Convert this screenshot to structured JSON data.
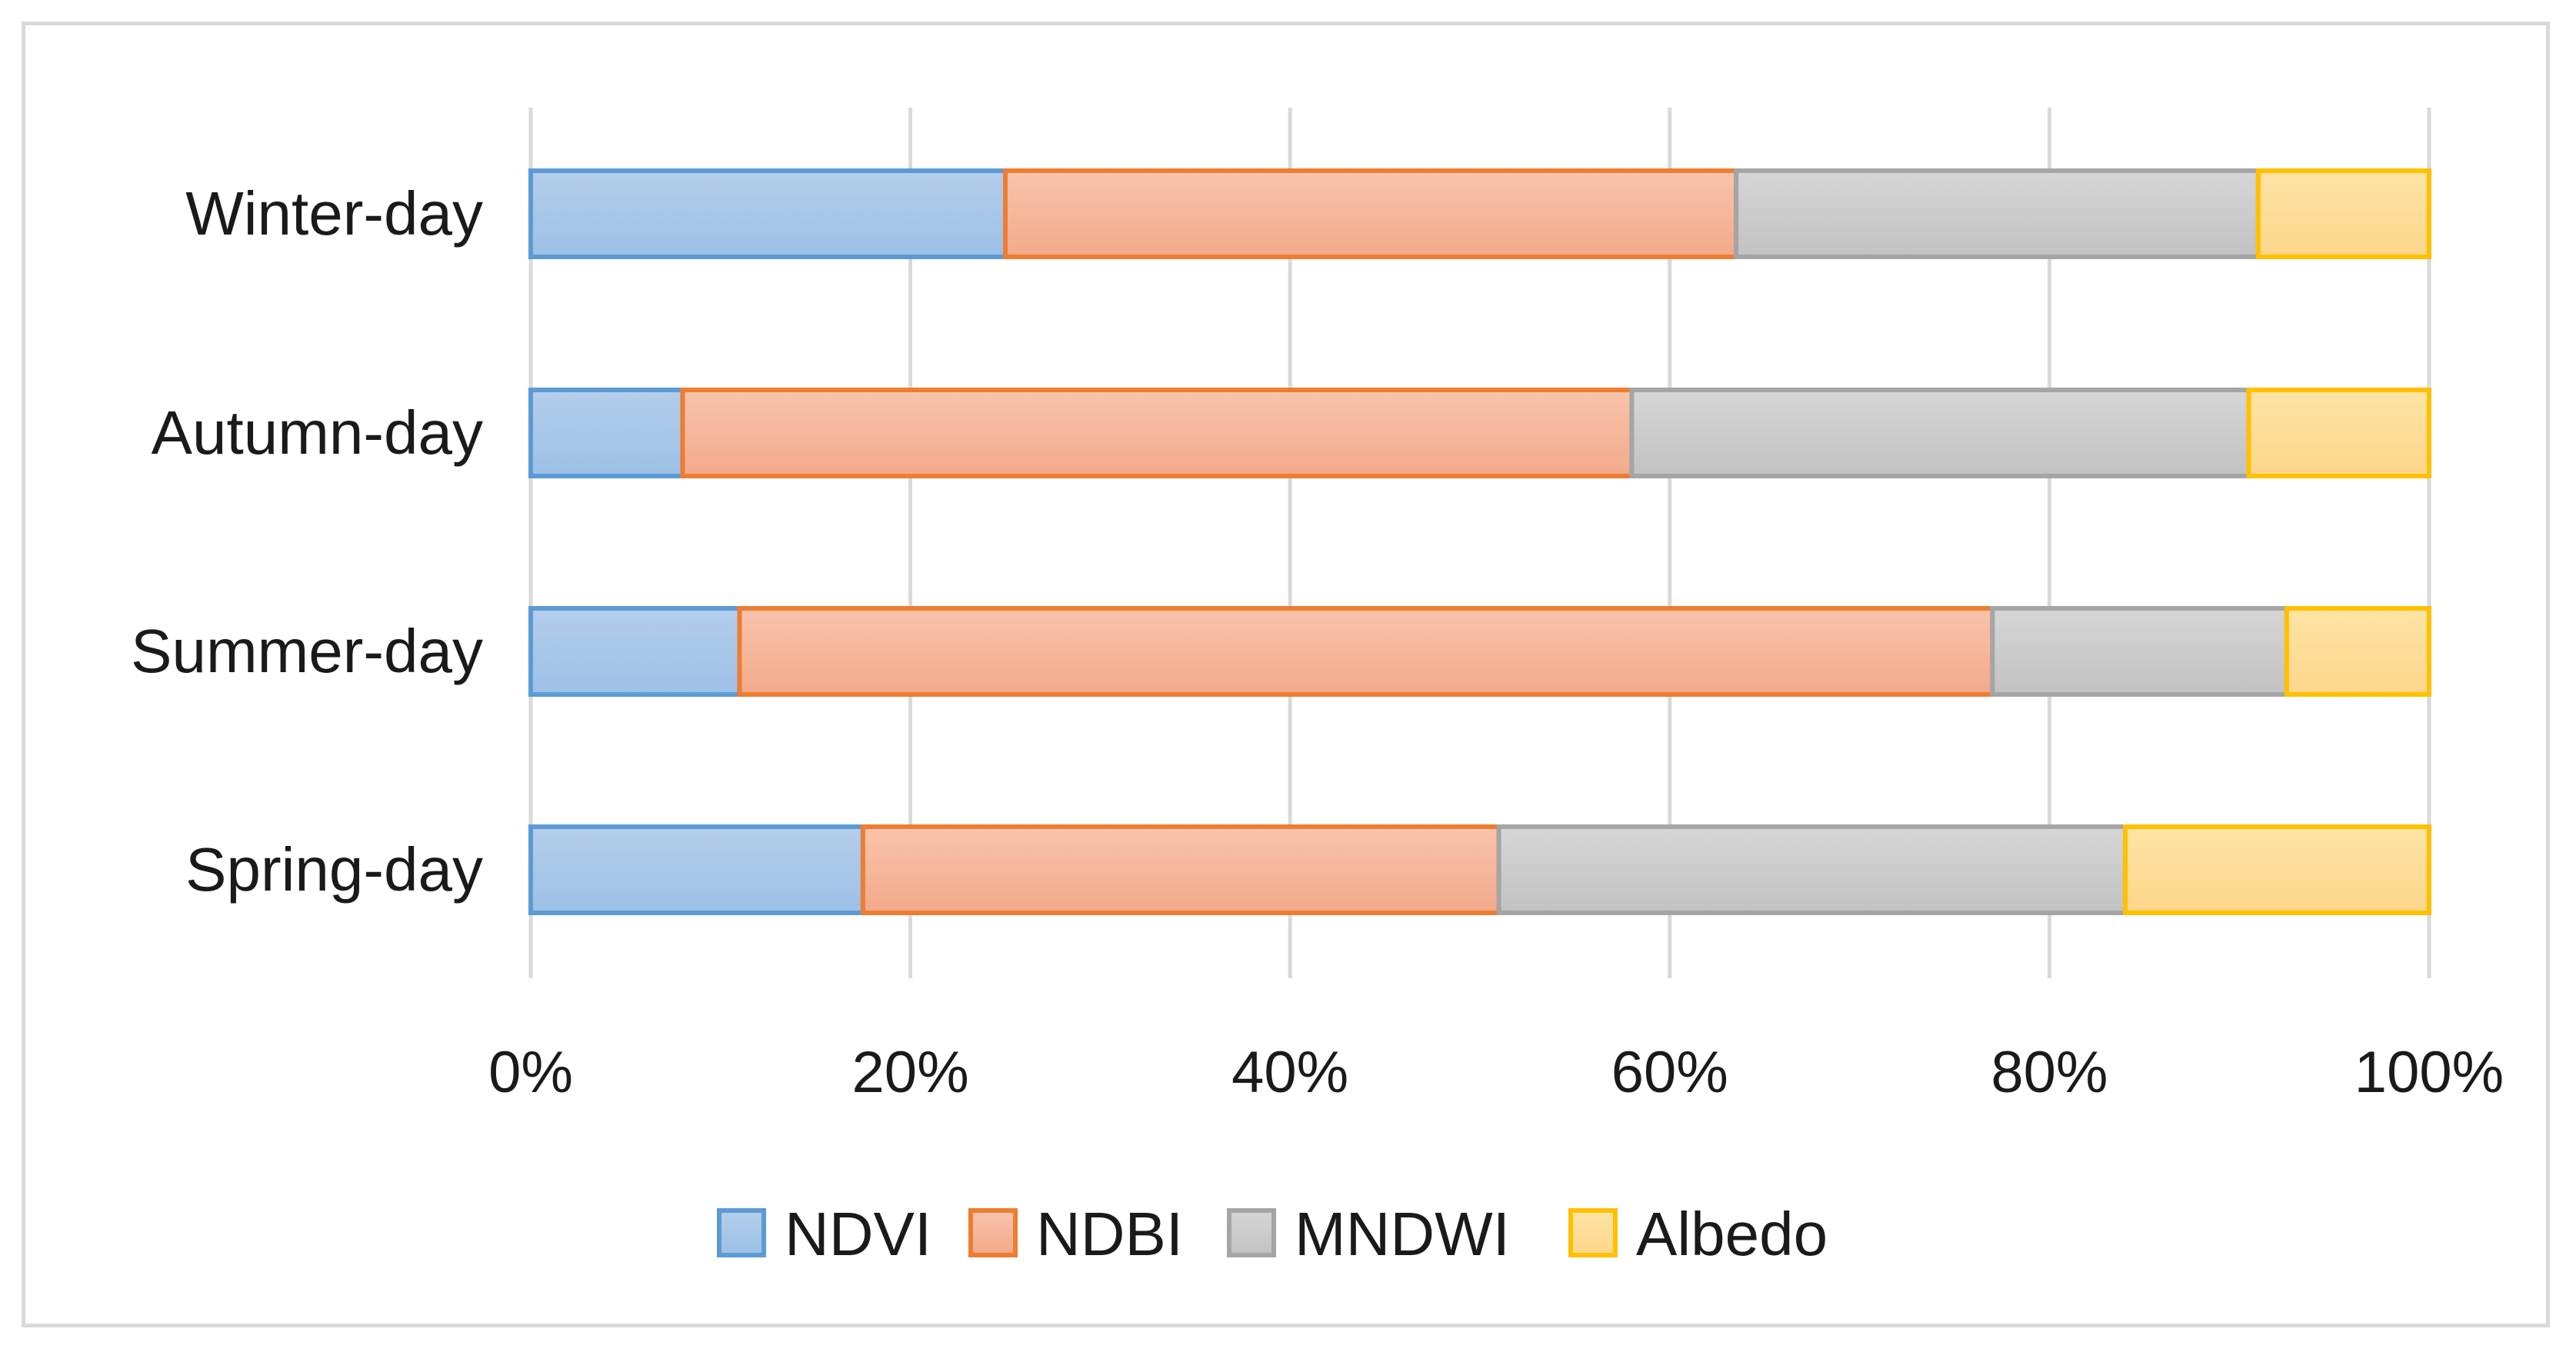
{
  "chart_data": {
    "type": "bar",
    "orientation": "horizontal",
    "stacked": "percent",
    "title": "",
    "xlabel": "",
    "ylabel": "",
    "categories": [
      "Winter-day",
      "Autumn-day",
      "Summer-day",
      "Spring-day"
    ],
    "x_ticks": [
      "0%",
      "20%",
      "40%",
      "60%",
      "80%",
      "100%"
    ],
    "xlim": [
      0,
      100
    ],
    "grid": "vertical",
    "legend_position": "bottom",
    "series": [
      {
        "name": "NDVI",
        "values": [
          25,
          8,
          11,
          17.5
        ],
        "color": "#5b9bd5",
        "fill_top": "#b4cdea",
        "fill_bottom": "#9dc0e7"
      },
      {
        "name": "NDBI",
        "values": [
          38.5,
          50,
          66,
          33.5
        ],
        "color": "#ed7d31",
        "fill_top": "#f8c4ac",
        "fill_bottom": "#f3a98a"
      },
      {
        "name": "MNDWI",
        "values": [
          27.5,
          32.5,
          15.5,
          33
        ],
        "color": "#a5a5a5",
        "fill_top": "#d6d6d6",
        "fill_bottom": "#c2c2c2"
      },
      {
        "name": "Albedo",
        "values": [
          9,
          9.5,
          7.5,
          16
        ],
        "color": "#ffc000",
        "fill_top": "#fde3a4",
        "fill_bottom": "#fdd68a"
      }
    ]
  }
}
